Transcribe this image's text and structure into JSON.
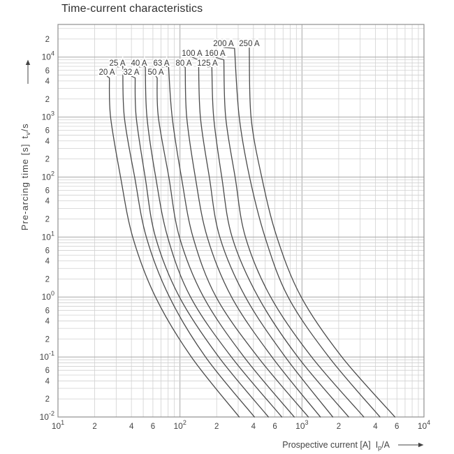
{
  "title": "Time-current characteristics",
  "x_axis": {
    "label": "Prospective current [A]",
    "symbol_base": "I",
    "symbol_sub": "p",
    "symbol_suffix": "/A",
    "min": 10,
    "max": 10000,
    "ticks": [
      {
        "v": 10,
        "kind": "decade",
        "exp": "1"
      },
      {
        "v": 20,
        "kind": "minor",
        "label": "2"
      },
      {
        "v": 40,
        "kind": "minor",
        "label": "4"
      },
      {
        "v": 60,
        "kind": "minor",
        "label": "6"
      },
      {
        "v": 100,
        "kind": "decade",
        "exp": "2"
      },
      {
        "v": 200,
        "kind": "minor",
        "label": "2"
      },
      {
        "v": 400,
        "kind": "minor",
        "label": "4"
      },
      {
        "v": 600,
        "kind": "minor",
        "label": "6"
      },
      {
        "v": 1000,
        "kind": "decade",
        "exp": "3"
      },
      {
        "v": 2000,
        "kind": "minor",
        "label": "2"
      },
      {
        "v": 4000,
        "kind": "minor",
        "label": "4"
      },
      {
        "v": 6000,
        "kind": "minor",
        "label": "6"
      },
      {
        "v": 10000,
        "kind": "decade",
        "exp": "4"
      }
    ]
  },
  "y_axis": {
    "label": "Pre-arcing time [s]",
    "symbol_base": "t",
    "symbol_sub": "v",
    "symbol_suffix": "/s",
    "min": 0.01,
    "max": 35000,
    "ticks": [
      {
        "v": 20000,
        "kind": "minor",
        "label": "2"
      },
      {
        "v": 10000,
        "kind": "decade",
        "exp": "4"
      },
      {
        "v": 6000,
        "kind": "minor",
        "label": "6"
      },
      {
        "v": 4000,
        "kind": "minor",
        "label": "4"
      },
      {
        "v": 2000,
        "kind": "minor",
        "label": "2"
      },
      {
        "v": 1000,
        "kind": "decade",
        "exp": "3"
      },
      {
        "v": 600,
        "kind": "minor",
        "label": "6"
      },
      {
        "v": 400,
        "kind": "minor",
        "label": "4"
      },
      {
        "v": 200,
        "kind": "minor",
        "label": "2"
      },
      {
        "v": 100,
        "kind": "decade",
        "exp": "2"
      },
      {
        "v": 60,
        "kind": "minor",
        "label": "6"
      },
      {
        "v": 40,
        "kind": "minor",
        "label": "4"
      },
      {
        "v": 20,
        "kind": "minor",
        "label": "2"
      },
      {
        "v": 10,
        "kind": "decade",
        "exp": "1"
      },
      {
        "v": 6,
        "kind": "minor",
        "label": "6"
      },
      {
        "v": 4,
        "kind": "minor",
        "label": "4"
      },
      {
        "v": 2,
        "kind": "minor",
        "label": "2"
      },
      {
        "v": 1,
        "kind": "decade",
        "exp": "0"
      },
      {
        "v": 0.6,
        "kind": "minor",
        "label": "6"
      },
      {
        "v": 0.4,
        "kind": "minor",
        "label": "4"
      },
      {
        "v": 0.2,
        "kind": "minor",
        "label": "2"
      },
      {
        "v": 0.1,
        "kind": "decade",
        "exp": "-1"
      },
      {
        "v": 0.06,
        "kind": "minor",
        "label": "6"
      },
      {
        "v": 0.04,
        "kind": "minor",
        "label": "4"
      },
      {
        "v": 0.02,
        "kind": "minor",
        "label": "2"
      },
      {
        "v": 0.01,
        "kind": "decade",
        "exp": "-2"
      }
    ]
  },
  "colors": {
    "curve": "#4a4a4a",
    "grid_minor": "#d1d1d1",
    "grid_major": "#a8a8a8",
    "border": "#8f8f8f",
    "text": "#444444",
    "label_text": "#3a3a3a"
  },
  "chart_data": {
    "type": "line",
    "title": "Time-current characteristics",
    "xlabel": "Prospective current [A] Ip/A",
    "ylabel": "Pre-arcing time [s] tv/s",
    "xlim": [
      10,
      10000
    ],
    "ylim": [
      0.01,
      35000
    ],
    "log_x": true,
    "log_y": true,
    "grid": true,
    "legend_position": "inline-labels-top",
    "point_format": "[prospective_current_A, pre_arcing_time_s]",
    "series": [
      {
        "name": "20 A",
        "rating_A": 20,
        "label_x": 153,
        "label_y": 103,
        "points": [
          [
            26.4,
            4500
          ],
          [
            27,
            1000
          ],
          [
            32.6,
            100
          ],
          [
            41,
            10
          ],
          [
            63,
            1
          ],
          [
            124,
            0.1
          ],
          [
            306,
            0.01
          ]
        ]
      },
      {
        "name": "25 A",
        "rating_A": 25,
        "label_x": 168,
        "label_y": 90,
        "points": [
          [
            34,
            7000
          ],
          [
            35,
            1000
          ],
          [
            42.5,
            100
          ],
          [
            53,
            10
          ],
          [
            82,
            1
          ],
          [
            162,
            0.1
          ],
          [
            408,
            0.01
          ]
        ]
      },
      {
        "name": "32 A",
        "rating_A": 32,
        "label_x": 188,
        "label_y": 103,
        "points": [
          [
            42.9,
            4500
          ],
          [
            43.8,
            1000
          ],
          [
            51.8,
            100
          ],
          [
            63,
            10
          ],
          [
            99,
            1
          ],
          [
            208,
            0.1
          ],
          [
            531,
            0.01
          ]
        ]
      },
      {
        "name": "40 A",
        "rating_A": 40,
        "label_x": 199,
        "label_y": 90,
        "points": [
          [
            52,
            7000
          ],
          [
            53.6,
            1000
          ],
          [
            63.2,
            100
          ],
          [
            79.2,
            10
          ],
          [
            122,
            1
          ],
          [
            264,
            0.1
          ],
          [
            684,
            0.01
          ]
        ]
      },
      {
        "name": "50 A",
        "rating_A": 50,
        "label_x": 223,
        "label_y": 103,
        "points": [
          [
            65,
            4500
          ],
          [
            66.5,
            1000
          ],
          [
            81,
            100
          ],
          [
            99,
            10
          ],
          [
            156,
            1
          ],
          [
            335,
            0.1
          ],
          [
            865,
            0.01
          ]
        ]
      },
      {
        "name": "63 A",
        "rating_A": 63,
        "label_x": 231,
        "label_y": 90,
        "points": [
          [
            80.6,
            7000
          ],
          [
            86.3,
            1000
          ],
          [
            102.7,
            100
          ],
          [
            127.9,
            10
          ],
          [
            197.8,
            1
          ],
          [
            434.7,
            0.1
          ],
          [
            1128,
            0.01
          ]
        ]
      },
      {
        "name": "80 A",
        "rating_A": 80,
        "label_x": 263,
        "label_y": 90,
        "points": [
          [
            110.4,
            7000
          ],
          [
            113.6,
            1000
          ],
          [
            133.6,
            100
          ],
          [
            167.2,
            10
          ],
          [
            264.8,
            1
          ],
          [
            568,
            0.1
          ],
          [
            1416,
            0.01
          ]
        ]
      },
      {
        "name": "100 A",
        "rating_A": 100,
        "label_x": 275,
        "label_y": 76,
        "points": [
          [
            142,
            9000
          ],
          [
            147,
            1000
          ],
          [
            174,
            100
          ],
          [
            212,
            10
          ],
          [
            344,
            1
          ],
          [
            730,
            0.1
          ],
          [
            1790,
            0.01
          ]
        ]
      },
      {
        "name": "125 A",
        "rating_A": 125,
        "label_x": 297,
        "label_y": 90,
        "points": [
          [
            182.5,
            7000
          ],
          [
            188.8,
            1000
          ],
          [
            220,
            100
          ],
          [
            267.5,
            10
          ],
          [
            437.5,
            1
          ],
          [
            925,
            0.1
          ],
          [
            2413,
            0.01
          ]
        ]
      },
      {
        "name": "160 A",
        "rating_A": 160,
        "label_x": 308,
        "label_y": 76,
        "points": [
          [
            228.8,
            9000
          ],
          [
            236.8,
            1000
          ],
          [
            283.2,
            100
          ],
          [
            344,
            10
          ],
          [
            553.6,
            1
          ],
          [
            1200,
            0.1
          ],
          [
            3216,
            0.01
          ]
        ]
      },
      {
        "name": "200 A",
        "rating_A": 200,
        "label_x": 320,
        "label_y": 62,
        "points": [
          [
            280,
            14000
          ],
          [
            306,
            1000
          ],
          [
            372,
            100
          ],
          [
            498,
            10
          ],
          [
            770,
            1
          ],
          [
            1660,
            0.1
          ],
          [
            4360,
            0.01
          ]
        ]
      },
      {
        "name": "250 A",
        "rating_A": 250,
        "label_x": 357,
        "label_y": 62,
        "points": [
          [
            370,
            14000
          ],
          [
            382.5,
            1000
          ],
          [
            467.5,
            100
          ],
          [
            622.5,
            10
          ],
          [
            985,
            1
          ],
          [
            2125,
            0.1
          ],
          [
            5775,
            0.01
          ]
        ]
      }
    ]
  }
}
